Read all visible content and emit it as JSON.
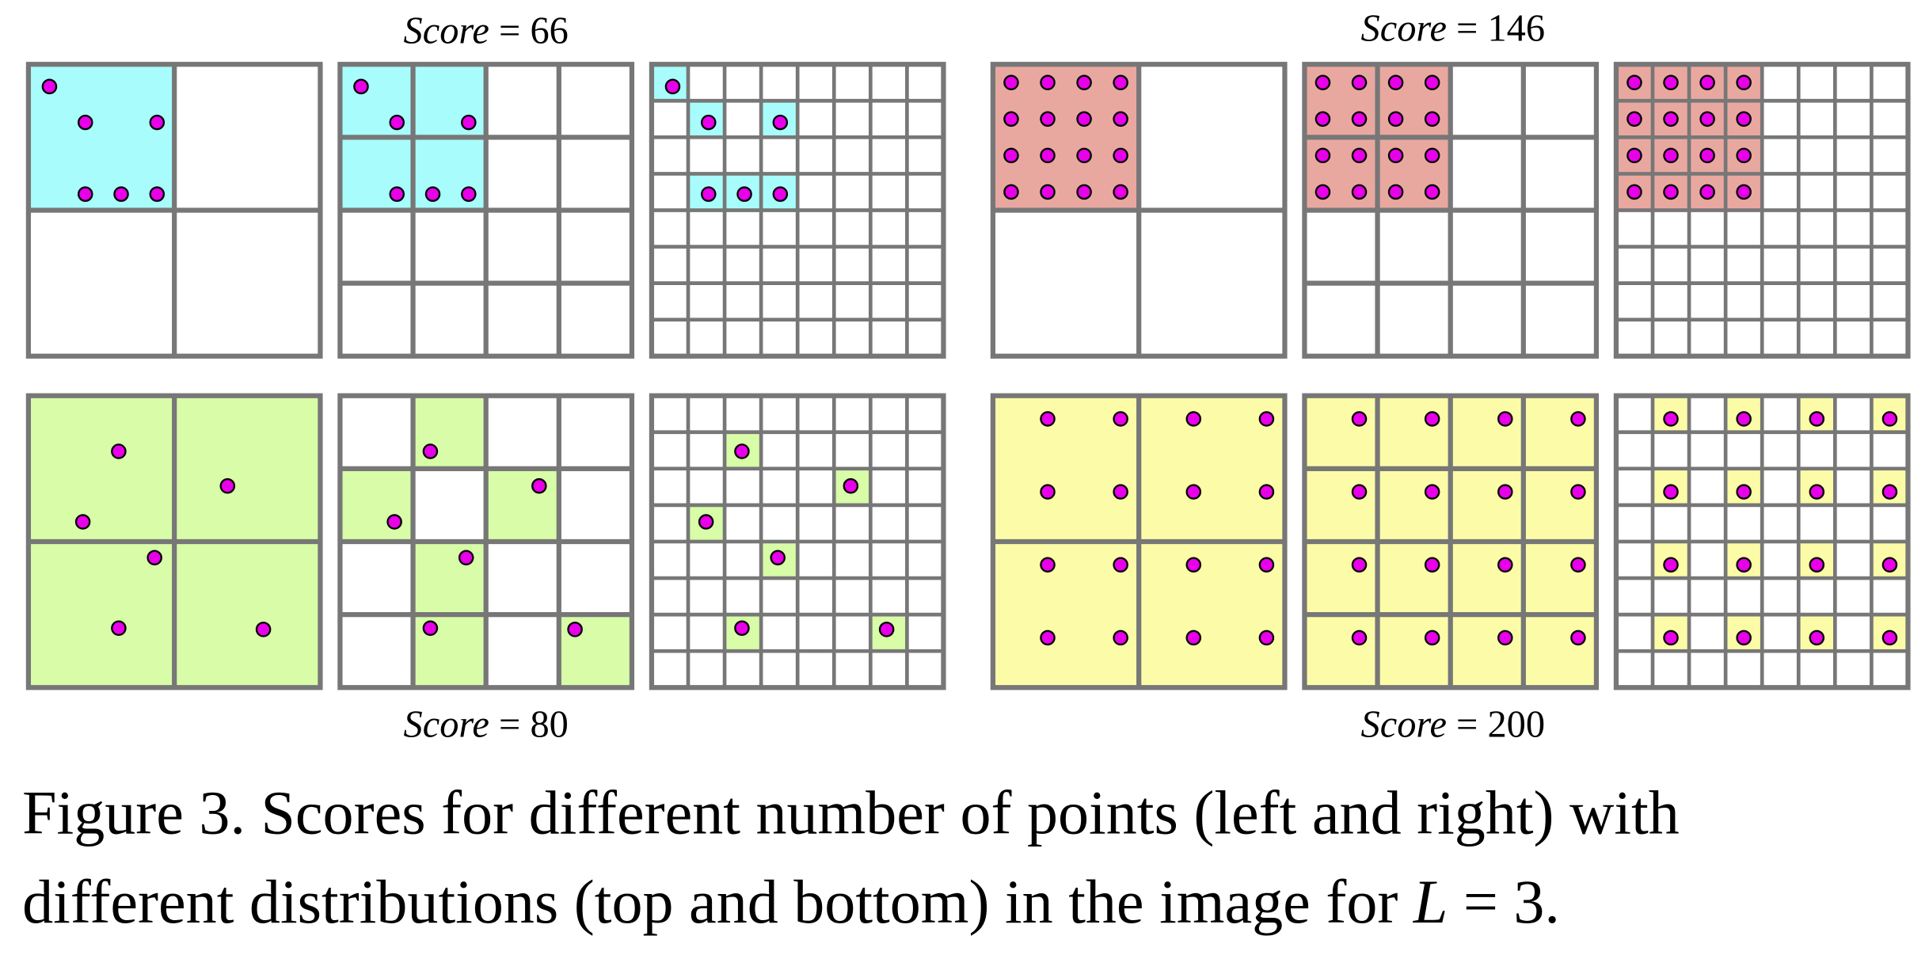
{
  "panels": [
    {
      "score_name": "Score",
      "score_sign": "=",
      "score": 66
    },
    {
      "score_name": "Score",
      "score_sign": "=",
      "score": 146
    },
    {
      "score_name": "Score",
      "score_sign": "=",
      "score": 80
    },
    {
      "score_name": "Score",
      "score_sign": "=",
      "score": 200
    }
  ],
  "caption": {
    "line_1": "Figure 3. Scores for different number of points (left and right) with",
    "line_2": "different distributions (top and bottom) in the image for",
    "variable": "L",
    "relation": "=",
    "value": "3."
  }
}
